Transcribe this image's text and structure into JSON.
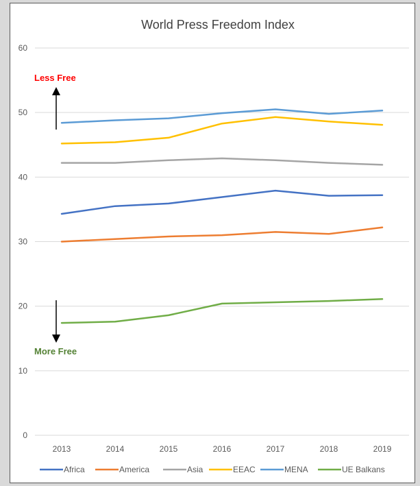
{
  "chart_data": {
    "type": "line",
    "title": "World Press Freedom Index",
    "xlabel": "",
    "ylabel": "",
    "x": [
      "2013",
      "2014",
      "2015",
      "2016",
      "2017",
      "2018",
      "2019"
    ],
    "ylim": [
      0,
      60
    ],
    "yticks": [
      0,
      10,
      20,
      30,
      40,
      50,
      60
    ],
    "grid": true,
    "legend_position": "bottom",
    "series": [
      {
        "name": "Africa",
        "color": "#4472c4",
        "values": [
          34.3,
          35.5,
          35.9,
          36.9,
          37.9,
          37.1,
          37.2
        ]
      },
      {
        "name": "America",
        "color": "#ed7d31",
        "values": [
          30.0,
          30.4,
          30.8,
          31.0,
          31.5,
          31.2,
          32.2
        ]
      },
      {
        "name": "Asia",
        "color": "#a5a5a5",
        "values": [
          42.2,
          42.2,
          42.6,
          42.9,
          42.6,
          42.2,
          41.9
        ]
      },
      {
        "name": "EEAC",
        "color": "#ffc000",
        "values": [
          45.2,
          45.4,
          46.1,
          48.3,
          49.3,
          48.6,
          48.1
        ]
      },
      {
        "name": "MENA",
        "color": "#5b9bd5",
        "values": [
          48.4,
          48.8,
          49.1,
          49.9,
          50.5,
          49.8,
          50.3
        ]
      },
      {
        "name": "UE Balkans",
        "color": "#70ad47",
        "values": [
          17.4,
          17.6,
          18.6,
          20.4,
          20.6,
          20.8,
          21.1
        ]
      }
    ],
    "annotations": [
      {
        "text": "Less Free",
        "color": "#ff0000",
        "arrow": "up"
      },
      {
        "text": "More Free",
        "color": "#548235",
        "arrow": "down"
      }
    ]
  }
}
